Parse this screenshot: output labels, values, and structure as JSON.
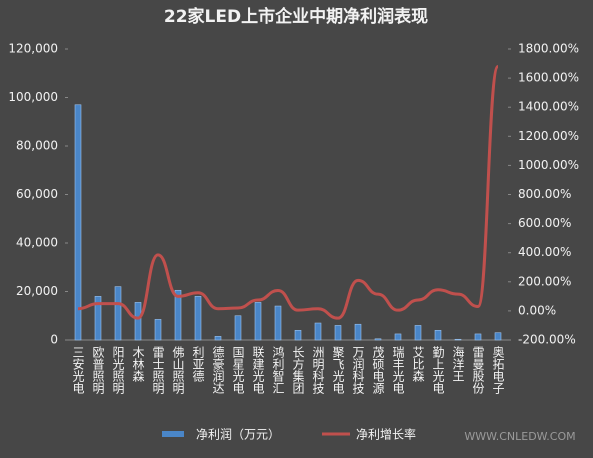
{
  "chart_data": {
    "type": "bar_line",
    "title": "22家LED上市企业中期净利润表现",
    "categories": [
      "三安光电",
      "欧普照明",
      "阳光照明",
      "木林森",
      "雷士照明",
      "佛山照明",
      "利亚德",
      "德豪润达",
      "国星光电",
      "联建光电",
      "鸿利智汇",
      "长方集团",
      "洲明科技",
      "聚飞光电",
      "万润科技",
      "茂硕电源",
      "瑞丰光电",
      "艾比森",
      "勤上光电",
      "海洋王",
      "雷曼股份",
      "奥拓电子"
    ],
    "series": [
      {
        "name": "净利润（万元）",
        "color": "#4a86c8",
        "type": "bar",
        "values": [
          97000,
          18000,
          22000,
          15500,
          8500,
          20500,
          18000,
          1500,
          10000,
          15500,
          14000,
          4000,
          7000,
          6000,
          6500,
          500,
          2500,
          6000,
          4000,
          300,
          2500,
          3000
        ]
      },
      {
        "name": "净利增长率",
        "color": "#c0504d",
        "type": "line",
        "axis": "y2",
        "values": [
          15,
          50,
          50,
          -50,
          385,
          100,
          125,
          15,
          20,
          75,
          140,
          5,
          15,
          -50,
          210,
          115,
          5,
          75,
          145,
          115,
          30,
          1680
        ]
      }
    ],
    "ylim": [
      0,
      120000
    ],
    "yticks": [
      0,
      {
        "value": 20000,
        "label": "20,000"
      },
      {
        "value": 40000,
        "label": "40,000"
      },
      {
        "value": 60000,
        "label": "60,000"
      },
      {
        "value": 80000,
        "label": "80,000"
      },
      {
        "value": 100000,
        "label": "100,000"
      },
      {
        "value": 120000,
        "label": "120,000"
      }
    ],
    "y2lim": [
      -200,
      1800
    ],
    "y2ticks": [
      {
        "value": -200,
        "label": "-200.00%"
      },
      {
        "value": 0,
        "label": "0.00%"
      },
      {
        "value": 200,
        "label": "200.00%"
      },
      {
        "value": 400,
        "label": "400.00%"
      },
      {
        "value": 600,
        "label": "600.00%"
      },
      {
        "value": 800,
        "label": "800.00%"
      },
      {
        "value": 1000,
        "label": "1000.00%"
      },
      {
        "value": 1200,
        "label": "1200.00%"
      },
      {
        "value": 1400,
        "label": "1400.00%"
      },
      {
        "value": 1600,
        "label": "1600.00%"
      },
      {
        "value": 1800,
        "label": "1800.00%"
      }
    ],
    "watermark": "WWW.CNLEDW.COM"
  }
}
